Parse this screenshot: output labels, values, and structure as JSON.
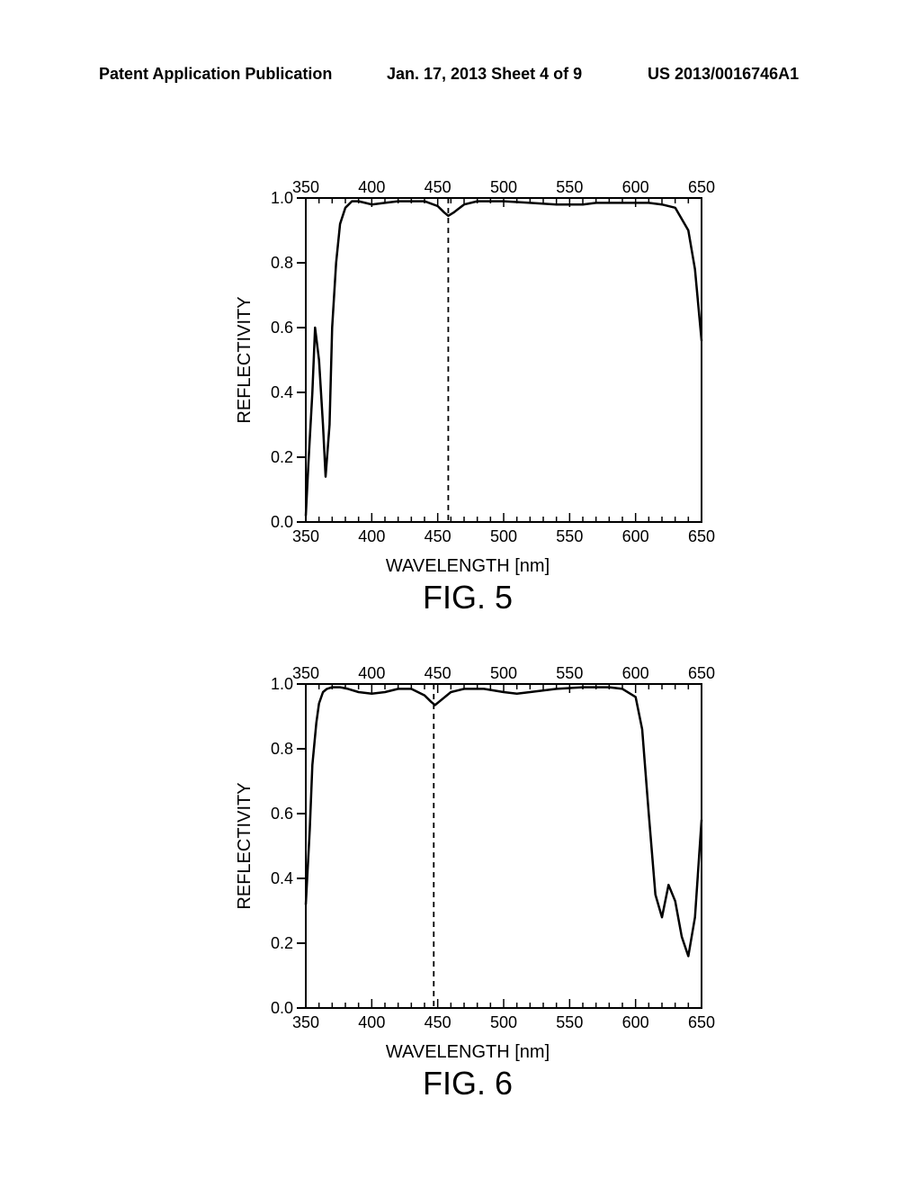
{
  "header": {
    "left": "Patent Application Publication",
    "center": "Jan. 17, 2013  Sheet 4 of 9",
    "right": "US 2013/0016746A1"
  },
  "fig5": {
    "type": "line",
    "title": "FIG. 5",
    "xlabel": "WAVELENGTH [nm]",
    "ylabel": "REFLECTIVITY",
    "xlim": [
      350,
      650
    ],
    "ylim": [
      0.0,
      1.0
    ],
    "xticks": [
      350,
      400,
      450,
      500,
      550,
      600,
      650
    ],
    "yticks": [
      0.0,
      0.2,
      0.4,
      0.6,
      0.8,
      1.0
    ],
    "line_color": "#000000",
    "line_width": 2.5,
    "vline_x": 458,
    "vline_style": "dashed",
    "vline_color": "#000000",
    "background_color": "#ffffff",
    "data_x": [
      350,
      352,
      355,
      357,
      360,
      363,
      365,
      368,
      370,
      373,
      376,
      380,
      385,
      390,
      395,
      400,
      410,
      420,
      430,
      440,
      450,
      455,
      458,
      462,
      470,
      480,
      500,
      520,
      540,
      560,
      570,
      580,
      590,
      600,
      610,
      620,
      630,
      640,
      645,
      650
    ],
    "data_y": [
      0.02,
      0.18,
      0.4,
      0.6,
      0.5,
      0.3,
      0.14,
      0.3,
      0.6,
      0.8,
      0.92,
      0.97,
      0.99,
      0.99,
      0.985,
      0.98,
      0.985,
      0.99,
      0.99,
      0.99,
      0.975,
      0.955,
      0.945,
      0.955,
      0.98,
      0.99,
      0.99,
      0.985,
      0.98,
      0.98,
      0.985,
      0.985,
      0.985,
      0.985,
      0.985,
      0.98,
      0.97,
      0.9,
      0.78,
      0.56
    ],
    "label_fontsize": 20,
    "tick_fontsize": 18
  },
  "fig6": {
    "type": "line",
    "title": "FIG. 6",
    "xlabel": "WAVELENGTH [nm]",
    "ylabel": "REFLECTIVITY",
    "xlim": [
      350,
      650
    ],
    "ylim": [
      0.0,
      1.0
    ],
    "xticks": [
      350,
      400,
      450,
      500,
      550,
      600,
      650
    ],
    "yticks": [
      0.0,
      0.2,
      0.4,
      0.6,
      0.8,
      1.0
    ],
    "line_color": "#000000",
    "line_width": 2.5,
    "vline_x": 447,
    "vline_style": "dashed",
    "vline_color": "#000000",
    "background_color": "#ffffff",
    "data_x": [
      350,
      353,
      355,
      358,
      360,
      363,
      366,
      370,
      376,
      382,
      390,
      400,
      410,
      420,
      430,
      440,
      445,
      448,
      451,
      460,
      470,
      485,
      500,
      510,
      520,
      540,
      560,
      580,
      590,
      600,
      605,
      610,
      615,
      620,
      625,
      630,
      635,
      640,
      645,
      650
    ],
    "data_y": [
      0.32,
      0.55,
      0.75,
      0.88,
      0.94,
      0.975,
      0.985,
      0.99,
      0.99,
      0.985,
      0.975,
      0.97,
      0.975,
      0.985,
      0.985,
      0.965,
      0.945,
      0.935,
      0.945,
      0.975,
      0.985,
      0.985,
      0.975,
      0.97,
      0.975,
      0.985,
      0.99,
      0.99,
      0.985,
      0.96,
      0.86,
      0.6,
      0.35,
      0.28,
      0.38,
      0.33,
      0.22,
      0.16,
      0.28,
      0.58
    ],
    "label_fontsize": 20,
    "tick_fontsize": 18
  }
}
